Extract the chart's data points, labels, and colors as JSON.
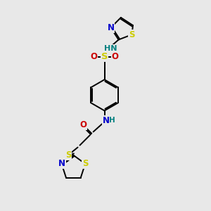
{
  "bg_color": "#e8e8e8",
  "C": "#000000",
  "N": "#0000cc",
  "O": "#cc0000",
  "S": "#cccc00",
  "NH_color": "#008080",
  "lw": 1.4,
  "fs": 8.5
}
